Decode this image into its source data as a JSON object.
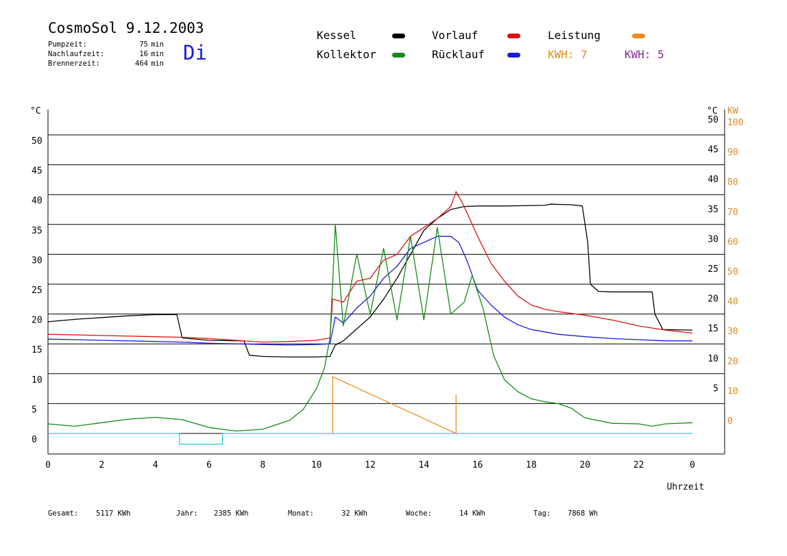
{
  "header": {
    "title": "CosmoSol 9.12.2003",
    "weekday": "Di",
    "runtimes": [
      {
        "label": "Pumpzeit:",
        "value": "75",
        "unit": "min"
      },
      {
        "label": "Nachlaufzeit:",
        "value": "16",
        "unit": "min"
      },
      {
        "label": "Brennerzeit:",
        "value": "464",
        "unit": "min"
      }
    ]
  },
  "legend": {
    "kessel": {
      "label": "Kessel",
      "color": "#000000"
    },
    "vorlauf": {
      "label": "Vorlauf",
      "color": "#e01010"
    },
    "leistung": {
      "label": "Leistung",
      "color": "#f08a1c"
    },
    "kollektor": {
      "label": "Kollektor",
      "color": "#138a13"
    },
    "ruecklauf": {
      "label": "Rücklauf",
      "color": "#1a1adc"
    },
    "kwh_orange": "KWH: 7",
    "kwh_purple": "KWH: 5"
  },
  "totals": {
    "gesamt_label": "Gesamt:",
    "gesamt_value": "5117 KWh",
    "jahr_label": "Jahr:",
    "jahr_value": "2385 KWh",
    "monat_label": "Monat:",
    "monat_value": "32 KWh",
    "woche_label": "Woche:",
    "woche_value": "14 KWh",
    "tag_label": "Tag:",
    "tag_value": "7868 Wh"
  },
  "chart_data": {
    "type": "line",
    "xlabel": "Uhrzeit",
    "ylabel_left": "°C",
    "ylabel_right": "°C",
    "ylabel_right2": "KW",
    "xlim": [
      0,
      24
    ],
    "ylim": [
      0,
      55
    ],
    "ylim_right2": [
      0,
      110
    ],
    "grid": true,
    "x_ticks": [
      "0",
      "2",
      "4",
      "6",
      "8",
      "10",
      "12",
      "14",
      "16",
      "18",
      "20",
      "22",
      "0"
    ],
    "y_ticks_left": [
      "0",
      "5",
      "10",
      "15",
      "20",
      "25",
      "30",
      "35",
      "40",
      "45",
      "50"
    ],
    "y_ticks_right": [
      "5",
      "10",
      "15",
      "20",
      "25",
      "30",
      "35",
      "40",
      "45",
      "50"
    ],
    "y_ticks_right2": [
      "0",
      "10",
      "20",
      "30",
      "40",
      "50",
      "60",
      "70",
      "80",
      "90",
      "100"
    ],
    "series": [
      {
        "name": "Kessel",
        "color": "#000000",
        "points": [
          [
            0,
            18.7
          ],
          [
            1,
            19.1
          ],
          [
            2,
            19.4
          ],
          [
            3,
            19.7
          ],
          [
            4,
            19.9
          ],
          [
            4.8,
            19.9
          ],
          [
            5.0,
            16.0
          ],
          [
            6,
            15.6
          ],
          [
            7.3,
            15.5
          ],
          [
            7.5,
            13.1
          ],
          [
            8,
            12.9
          ],
          [
            9,
            12.8
          ],
          [
            10,
            12.8
          ],
          [
            10.5,
            12.9
          ],
          [
            10.7,
            14.8
          ],
          [
            11,
            15.5
          ],
          [
            11.5,
            17.5
          ],
          [
            12,
            19.5
          ],
          [
            12.5,
            22.5
          ],
          [
            13,
            26
          ],
          [
            13.5,
            30
          ],
          [
            14,
            34
          ],
          [
            14.5,
            36
          ],
          [
            15,
            37.5
          ],
          [
            15.5,
            38
          ],
          [
            16,
            38.1
          ],
          [
            17,
            38.1
          ],
          [
            18.5,
            38.2
          ],
          [
            18.7,
            38.4
          ],
          [
            19.5,
            38.3
          ],
          [
            19.9,
            38.1
          ],
          [
            20.1,
            32
          ],
          [
            20.2,
            25
          ],
          [
            20.5,
            23.8
          ],
          [
            21,
            23.7
          ],
          [
            22,
            23.7
          ],
          [
            22.5,
            23.7
          ],
          [
            22.6,
            20
          ],
          [
            22.9,
            17.4
          ],
          [
            24,
            17.3
          ]
        ]
      },
      {
        "name": "Vorlauf",
        "color": "#e01010",
        "points": [
          [
            0,
            16.6
          ],
          [
            2,
            16.4
          ],
          [
            4,
            16.2
          ],
          [
            5,
            16.1
          ],
          [
            6,
            15.9
          ],
          [
            7,
            15.6
          ],
          [
            8,
            15.3
          ],
          [
            9,
            15.4
          ],
          [
            10,
            15.6
          ],
          [
            10.5,
            16.0
          ],
          [
            10.6,
            22.5
          ],
          [
            11,
            22
          ],
          [
            11.5,
            25.5
          ],
          [
            12,
            26
          ],
          [
            12.5,
            29
          ],
          [
            13,
            30
          ],
          [
            13.5,
            33
          ],
          [
            14,
            34.5
          ],
          [
            14.5,
            36
          ],
          [
            15,
            38
          ],
          [
            15.2,
            40.5
          ],
          [
            15.5,
            38
          ],
          [
            16,
            33
          ],
          [
            16.5,
            28.5
          ],
          [
            17,
            25.5
          ],
          [
            17.5,
            23
          ],
          [
            18,
            21.5
          ],
          [
            18.5,
            20.8
          ],
          [
            19,
            20.4
          ],
          [
            20,
            19.8
          ],
          [
            21,
            19
          ],
          [
            22,
            18
          ],
          [
            23,
            17.3
          ],
          [
            24,
            16.8
          ]
        ]
      },
      {
        "name": "Rücklauf",
        "color": "#1a1adc",
        "points": [
          [
            0,
            15.8
          ],
          [
            2,
            15.6
          ],
          [
            4,
            15.4
          ],
          [
            5,
            15.3
          ],
          [
            6,
            15.1
          ],
          [
            7,
            15.0
          ],
          [
            8,
            14.9
          ],
          [
            9,
            14.8
          ],
          [
            10,
            14.9
          ],
          [
            10.5,
            15.0
          ],
          [
            10.7,
            19.5
          ],
          [
            11,
            18.5
          ],
          [
            11.5,
            21
          ],
          [
            12,
            23
          ],
          [
            12.5,
            26
          ],
          [
            13,
            28
          ],
          [
            13.5,
            31
          ],
          [
            14,
            32
          ],
          [
            14.5,
            33
          ],
          [
            15,
            33
          ],
          [
            15.3,
            32
          ],
          [
            15.6,
            29
          ],
          [
            16,
            24
          ],
          [
            16.5,
            21.5
          ],
          [
            17,
            19.5
          ],
          [
            17.5,
            18.2
          ],
          [
            18,
            17.4
          ],
          [
            19,
            16.6
          ],
          [
            20,
            16.2
          ],
          [
            21,
            15.9
          ],
          [
            22,
            15.7
          ],
          [
            23,
            15.5
          ],
          [
            24,
            15.5
          ]
        ]
      },
      {
        "name": "Kollektor",
        "color": "#138a13",
        "points": [
          [
            0,
            1.6
          ],
          [
            1,
            1.2
          ],
          [
            2,
            1.8
          ],
          [
            3,
            2.4
          ],
          [
            4,
            2.7
          ],
          [
            5,
            2.3
          ],
          [
            6,
            1.0
          ],
          [
            7,
            0.4
          ],
          [
            8,
            0.7
          ],
          [
            9,
            2.2
          ],
          [
            9.5,
            4
          ],
          [
            10,
            7.5
          ],
          [
            10.3,
            11
          ],
          [
            10.5,
            16
          ],
          [
            10.6,
            25
          ],
          [
            10.7,
            35
          ],
          [
            11,
            18
          ],
          [
            11.5,
            30
          ],
          [
            12,
            20
          ],
          [
            12.5,
            31
          ],
          [
            13,
            19
          ],
          [
            13.5,
            33
          ],
          [
            14,
            19
          ],
          [
            14.5,
            34.5
          ],
          [
            15,
            20
          ],
          [
            15.5,
            22
          ],
          [
            15.8,
            26.5
          ],
          [
            16.2,
            21
          ],
          [
            16.6,
            13
          ],
          [
            17,
            9
          ],
          [
            17.5,
            7
          ],
          [
            18,
            5.8
          ],
          [
            18.5,
            5.3
          ],
          [
            19,
            5
          ],
          [
            19.5,
            4.2
          ],
          [
            20,
            2.6
          ],
          [
            21,
            1.7
          ],
          [
            22,
            1.6
          ],
          [
            22.5,
            1.2
          ],
          [
            23,
            1.6
          ],
          [
            24,
            1.8
          ]
        ]
      },
      {
        "name": "Leistung",
        "color": "#f08a1c",
        "points": [
          [
            10.6,
            0
          ],
          [
            10.6,
            9.5
          ],
          [
            15.2,
            0
          ],
          [
            15.2,
            6.5
          ]
        ]
      },
      {
        "name": "Pumpe",
        "color": "#20d0d8",
        "points": [
          [
            0,
            0
          ],
          [
            4.9,
            0
          ],
          [
            4.9,
            -1.8
          ],
          [
            6.5,
            -1.8
          ],
          [
            6.5,
            0
          ],
          [
            24,
            0
          ]
        ]
      }
    ]
  }
}
